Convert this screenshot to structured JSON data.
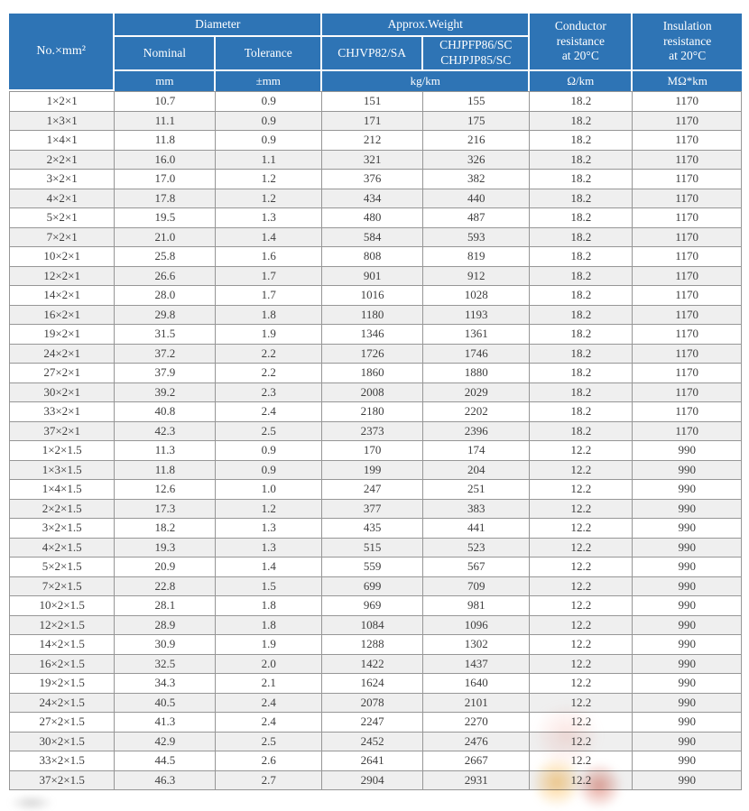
{
  "table": {
    "header": {
      "no_mm2": "No.×mm²",
      "diameter": "Diameter",
      "nominal": "Nominal",
      "tolerance": "Tolerance",
      "approx_weight": "Approx.Weight",
      "weight_model_1": "CHJVP82/SA",
      "weight_model_2": "CHJPFP86/SC\nCHJPJP85/SC",
      "conductor_resistance": "Conductor\nresistance\nat 20°C",
      "insulation_resistance": "Insulation\nresistance\nat 20°C"
    },
    "units": {
      "nominal": "mm",
      "tolerance": "±mm",
      "weight": "kg/km",
      "conductor": "Ω/km",
      "insulation": "MΩ*km"
    },
    "column_keys": [
      "no-mm2",
      "nominal-mm",
      "tolerance-mm",
      "weight-chjvp82-sa",
      "weight-chjpfp86-chjpjp85",
      "conductor-resistance",
      "insulation-resistance"
    ],
    "rows": [
      [
        "1×2×1",
        "10.7",
        "0.9",
        "151",
        "155",
        "18.2",
        "1170"
      ],
      [
        "1×3×1",
        "11.1",
        "0.9",
        "171",
        "175",
        "18.2",
        "1170"
      ],
      [
        "1×4×1",
        "11.8",
        "0.9",
        "212",
        "216",
        "18.2",
        "1170"
      ],
      [
        "2×2×1",
        "16.0",
        "1.1",
        "321",
        "326",
        "18.2",
        "1170"
      ],
      [
        "3×2×1",
        "17.0",
        "1.2",
        "376",
        "382",
        "18.2",
        "1170"
      ],
      [
        "4×2×1",
        "17.8",
        "1.2",
        "434",
        "440",
        "18.2",
        "1170"
      ],
      [
        "5×2×1",
        "19.5",
        "1.3",
        "480",
        "487",
        "18.2",
        "1170"
      ],
      [
        "7×2×1",
        "21.0",
        "1.4",
        "584",
        "593",
        "18.2",
        "1170"
      ],
      [
        "10×2×1",
        "25.8",
        "1.6",
        "808",
        "819",
        "18.2",
        "1170"
      ],
      [
        "12×2×1",
        "26.6",
        "1.7",
        "901",
        "912",
        "18.2",
        "1170"
      ],
      [
        "14×2×1",
        "28.0",
        "1.7",
        "1016",
        "1028",
        "18.2",
        "1170"
      ],
      [
        "16×2×1",
        "29.8",
        "1.8",
        "1180",
        "1193",
        "18.2",
        "1170"
      ],
      [
        "19×2×1",
        "31.5",
        "1.9",
        "1346",
        "1361",
        "18.2",
        "1170"
      ],
      [
        "24×2×1",
        "37.2",
        "2.2",
        "1726",
        "1746",
        "18.2",
        "1170"
      ],
      [
        "27×2×1",
        "37.9",
        "2.2",
        "1860",
        "1880",
        "18.2",
        "1170"
      ],
      [
        "30×2×1",
        "39.2",
        "2.3",
        "2008",
        "2029",
        "18.2",
        "1170"
      ],
      [
        "33×2×1",
        "40.8",
        "2.4",
        "2180",
        "2202",
        "18.2",
        "1170"
      ],
      [
        "37×2×1",
        "42.3",
        "2.5",
        "2373",
        "2396",
        "18.2",
        "1170"
      ],
      [
        "1×2×1.5",
        "11.3",
        "0.9",
        "170",
        "174",
        "12.2",
        "990"
      ],
      [
        "1×3×1.5",
        "11.8",
        "0.9",
        "199",
        "204",
        "12.2",
        "990"
      ],
      [
        "1×4×1.5",
        "12.6",
        "1.0",
        "247",
        "251",
        "12.2",
        "990"
      ],
      [
        "2×2×1.5",
        "17.3",
        "1.2",
        "377",
        "383",
        "12.2",
        "990"
      ],
      [
        "3×2×1.5",
        "18.2",
        "1.3",
        "435",
        "441",
        "12.2",
        "990"
      ],
      [
        "4×2×1.5",
        "19.3",
        "1.3",
        "515",
        "523",
        "12.2",
        "990"
      ],
      [
        "5×2×1.5",
        "20.9",
        "1.4",
        "559",
        "567",
        "12.2",
        "990"
      ],
      [
        "7×2×1.5",
        "22.8",
        "1.5",
        "699",
        "709",
        "12.2",
        "990"
      ],
      [
        "10×2×1.5",
        "28.1",
        "1.8",
        "969",
        "981",
        "12.2",
        "990"
      ],
      [
        "12×2×1.5",
        "28.9",
        "1.8",
        "1084",
        "1096",
        "12.2",
        "990"
      ],
      [
        "14×2×1.5",
        "30.9",
        "1.9",
        "1288",
        "1302",
        "12.2",
        "990"
      ],
      [
        "16×2×1.5",
        "32.5",
        "2.0",
        "1422",
        "1437",
        "12.2",
        "990"
      ],
      [
        "19×2×1.5",
        "34.3",
        "2.1",
        "1624",
        "1640",
        "12.2",
        "990"
      ],
      [
        "24×2×1.5",
        "40.5",
        "2.4",
        "2078",
        "2101",
        "12.2",
        "990"
      ],
      [
        "27×2×1.5",
        "41.3",
        "2.4",
        "2247",
        "2270",
        "12.2",
        "990"
      ],
      [
        "30×2×1.5",
        "42.9",
        "2.5",
        "2452",
        "2476",
        "12.2",
        "990"
      ],
      [
        "33×2×1.5",
        "44.5",
        "2.6",
        "2641",
        "2667",
        "12.2",
        "990"
      ],
      [
        "37×2×1.5",
        "46.3",
        "2.7",
        "2904",
        "2931",
        "12.2",
        "990"
      ]
    ]
  },
  "colors": {
    "header_blue": "#2e74b5",
    "header_text": "#ffffff",
    "body_text": "#3e3e3e",
    "grid_border": "#969696",
    "alt_row": "#efefef",
    "watermark_orange": "#faaf37",
    "watermark_red": "#cd4b37"
  }
}
